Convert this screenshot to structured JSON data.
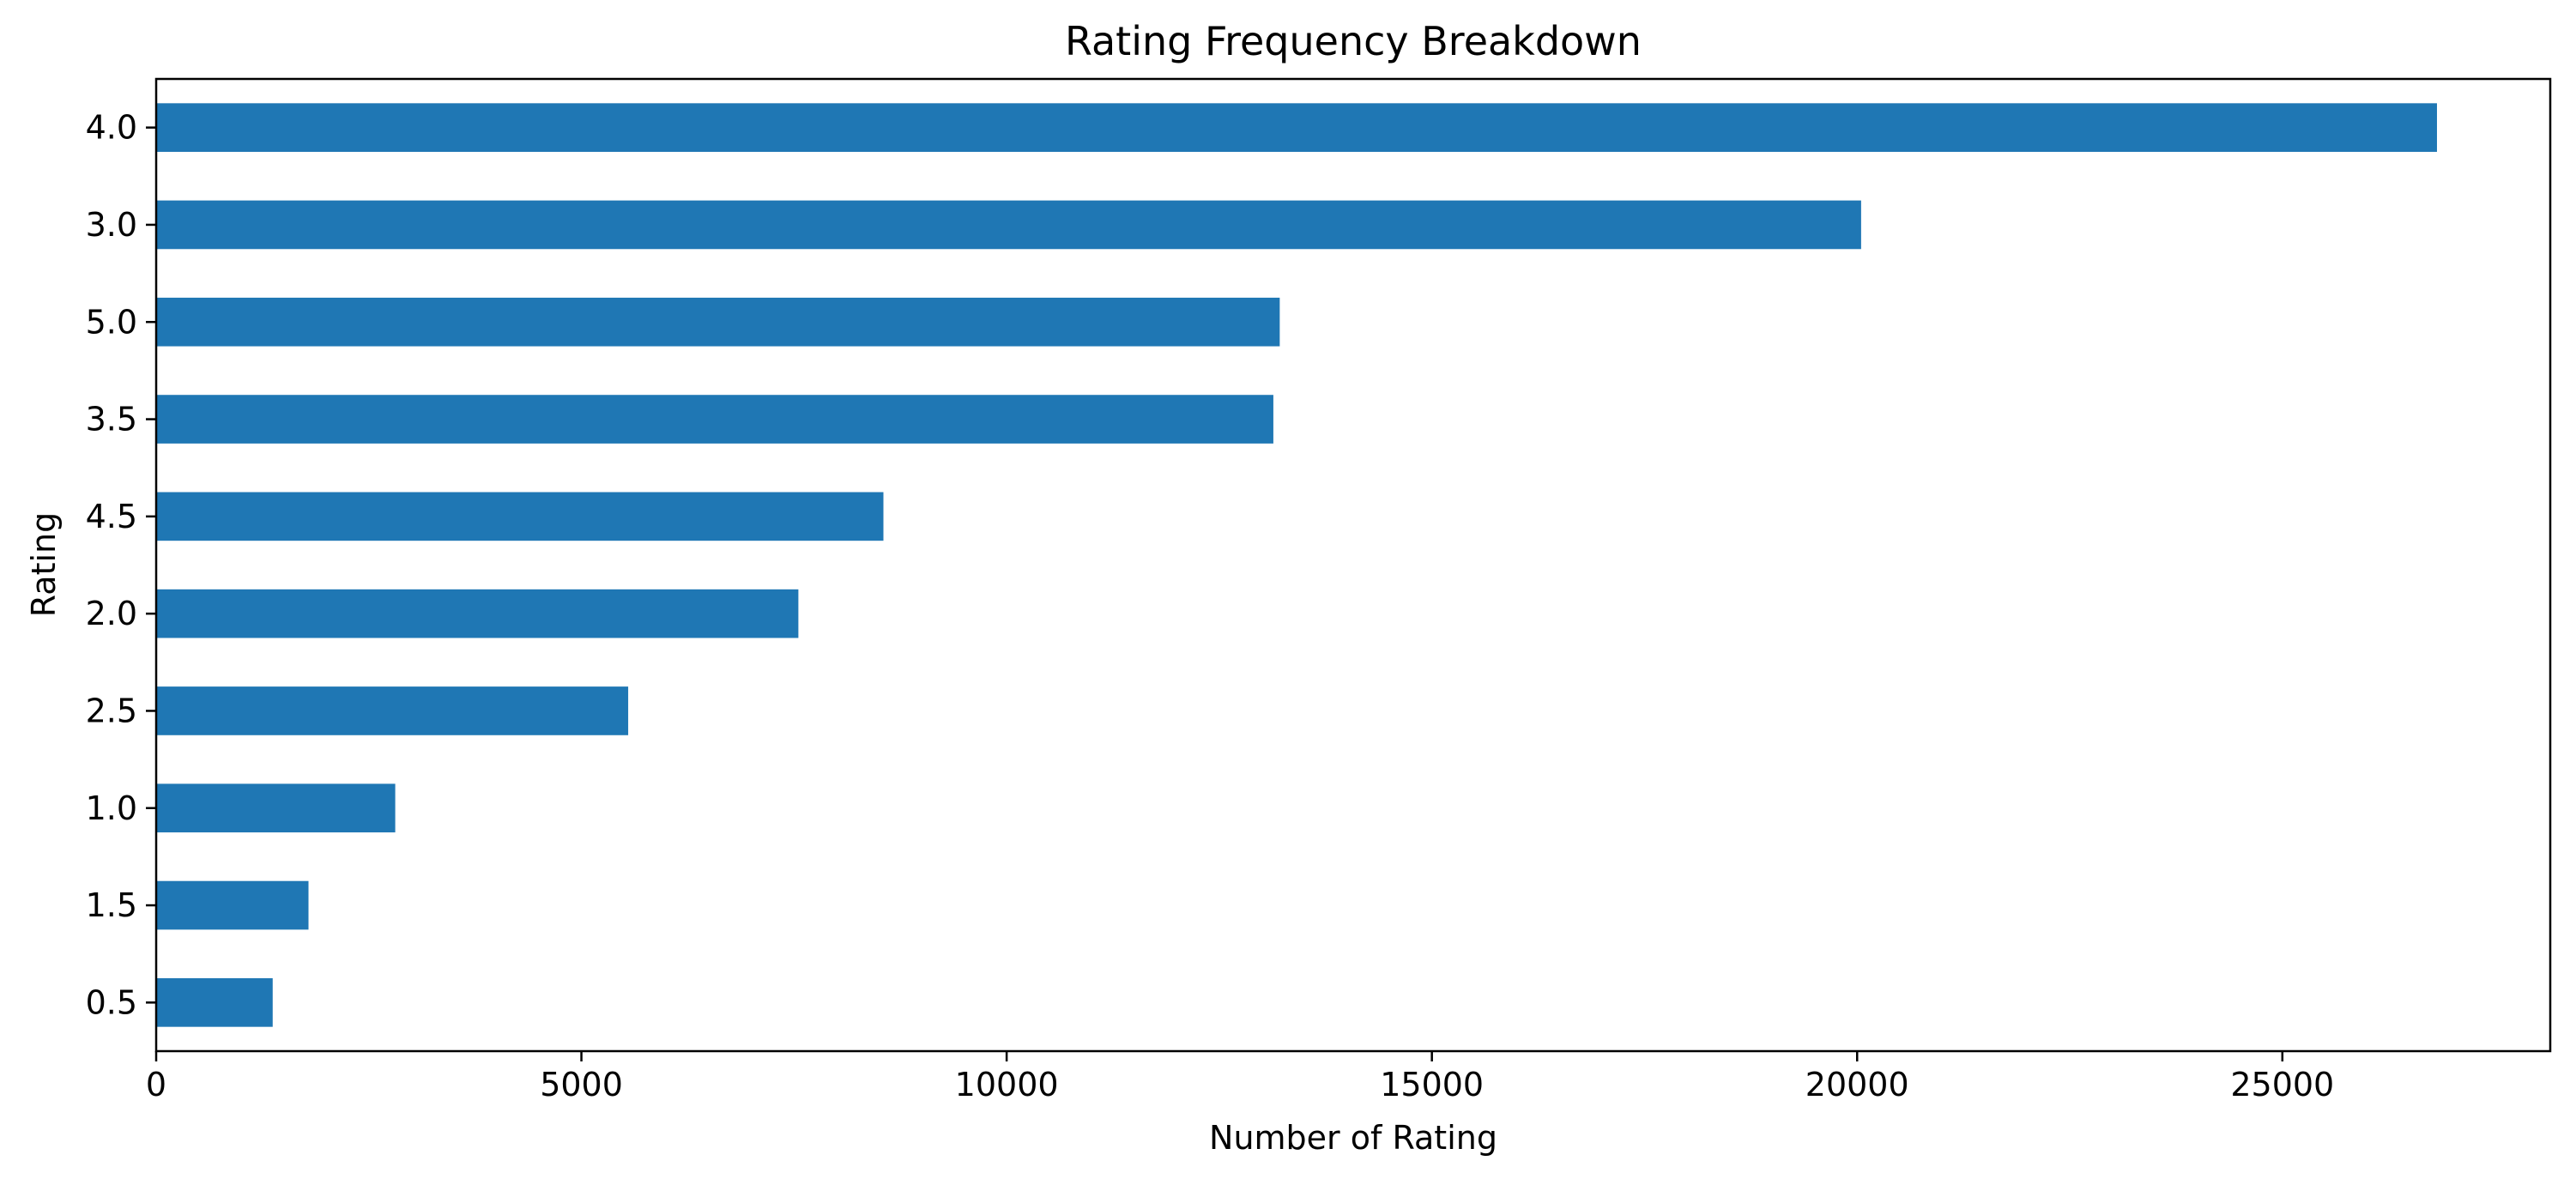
{
  "chart_data": {
    "type": "bar",
    "orientation": "horizontal",
    "title": "Rating Frequency Breakdown",
    "xlabel": "Number of Rating",
    "ylabel": "Rating",
    "categories": [
      "4.0",
      "3.0",
      "5.0",
      "3.5",
      "4.5",
      "2.0",
      "2.5",
      "1.0",
      "1.5",
      "0.5"
    ],
    "values": [
      26818,
      20047,
      13211,
      13136,
      8551,
      7551,
      5550,
      2811,
      1791,
      1370
    ],
    "xlim": [
      0,
      28150
    ],
    "xticks": [
      0,
      5000,
      10000,
      15000,
      20000,
      25000
    ],
    "xtick_labels": [
      "0",
      "5000",
      "10000",
      "15000",
      "20000",
      "25000"
    ],
    "grid": false,
    "legend": "none",
    "bar_color": "#1f77b4"
  }
}
